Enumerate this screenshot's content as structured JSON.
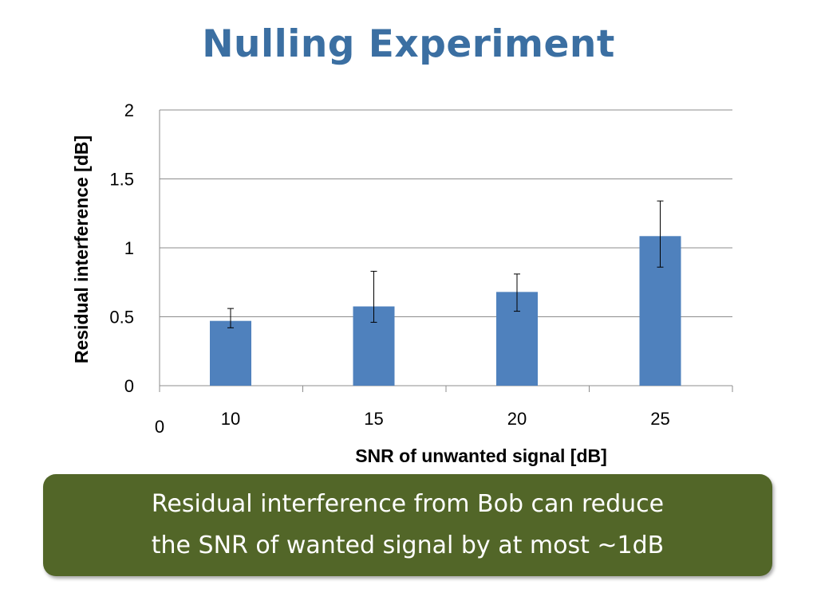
{
  "slide": {
    "title": "Nulling Experiment",
    "callout": {
      "lines": [
        "Residual interference from Bob can reduce",
        "the SNR of wanted signal by at most ~1dB"
      ]
    }
  },
  "colors": {
    "title": "#3b6fa2",
    "bar": "#4f81bd",
    "callout_bg": "#526628",
    "callout_text": "#ffffff"
  },
  "chart_data": {
    "type": "bar",
    "categories": [
      "10",
      "15",
      "20",
      "25"
    ],
    "values": [
      0.47,
      0.575,
      0.68,
      1.085
    ],
    "error_low": [
      0.42,
      0.46,
      0.54,
      0.86
    ],
    "error_high": [
      0.56,
      0.83,
      0.81,
      1.34
    ],
    "x_origin_label": "0",
    "xlabel": "SNR of unwanted signal [dB]",
    "ylabel": "Residual interference [dB]",
    "ylim": [
      0,
      2
    ],
    "yticks": [
      "0",
      "0.5",
      "1",
      "1.5",
      "2"
    ],
    "grid": true,
    "legend": "none"
  }
}
